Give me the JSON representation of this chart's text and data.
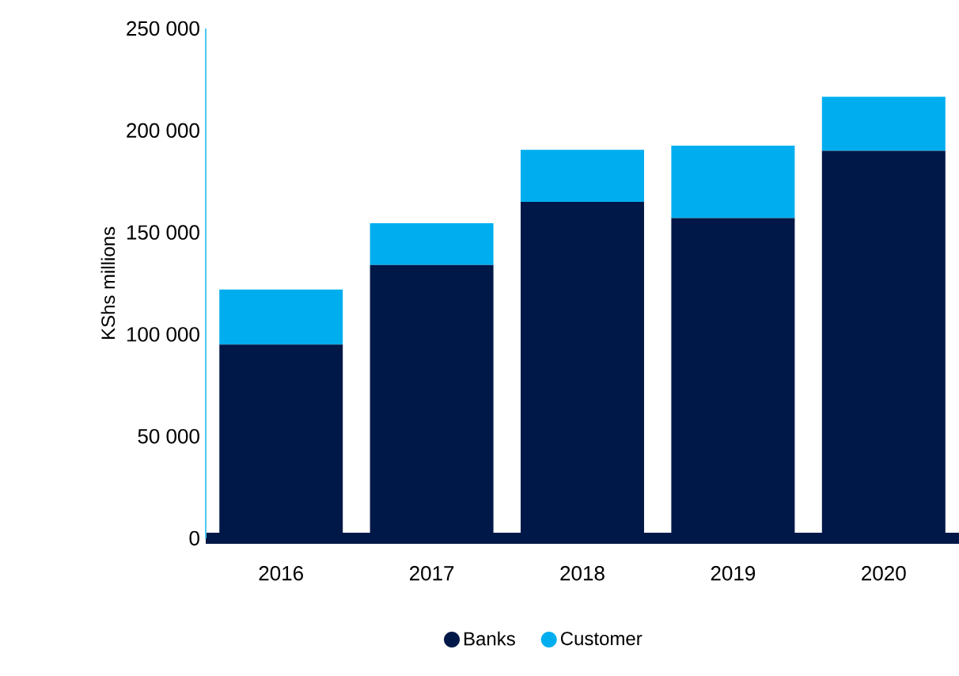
{
  "chart_data": {
    "type": "bar",
    "stacked": true,
    "ylabel": "KShs millions",
    "categories": [
      "2016",
      "2017",
      "2018",
      "2019",
      "2020"
    ],
    "series": [
      {
        "name": "Banks",
        "color": "#001848",
        "values": [
          95000,
          134000,
          165000,
          157000,
          190000
        ]
      },
      {
        "name": "Customer",
        "color": "#00aeef",
        "values": [
          27000,
          20500,
          25500,
          35500,
          26500
        ]
      }
    ],
    "ylim": [
      0,
      250000
    ],
    "yticks": [
      {
        "value": 0,
        "label": "0"
      },
      {
        "value": 50000,
        "label": "50 000"
      },
      {
        "value": 100000,
        "label": "100 000"
      },
      {
        "value": 150000,
        "label": "150 000"
      },
      {
        "value": 200000,
        "label": "200 000"
      },
      {
        "value": 250000,
        "label": "250 000"
      }
    ],
    "grid": false,
    "legend": "bottom"
  }
}
